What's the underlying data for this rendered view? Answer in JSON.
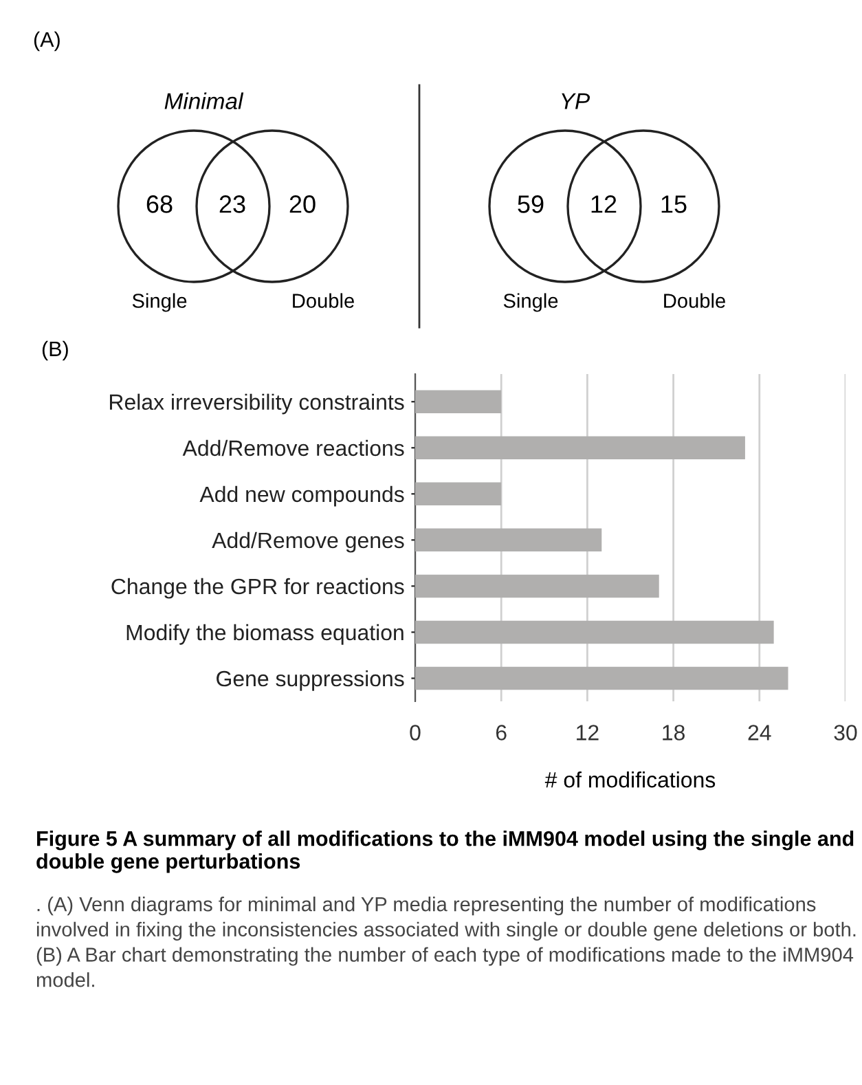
{
  "chart_data": [
    {
      "type": "other",
      "title": "Minimal",
      "categories": [
        "Single",
        null,
        "Double"
      ],
      "values": [
        68,
        23,
        20
      ],
      "data_labels": true,
      "annotations": [
        "(A)"
      ]
    },
    {
      "type": "other",
      "title": "YP",
      "categories": [
        "Single",
        null,
        "Double"
      ],
      "values": [
        59,
        12,
        15
      ],
      "data_labels": true
    },
    {
      "type": "bar",
      "orientation": "horizontal",
      "categories": [
        "Relax irreversibility constraints",
        "Add/Remove reactions",
        "Add new compounds",
        "Add/Remove genes",
        "Change the GPR for reactions",
        "Modify the biomass equation",
        "Gene suppressions"
      ],
      "values": [
        6,
        23,
        6,
        13,
        17,
        25,
        26
      ],
      "color": "#b0afae",
      "xlim": [
        0,
        30
      ],
      "xticks": [
        0,
        6,
        12,
        18,
        24,
        30
      ],
      "grid": "x",
      "xlabel": "# of modifications",
      "annotations": [
        "(B)",
        "Figure 5 A summary of all modifications to the iMM904 model using the single and double gene perturbations",
        ". (A) Venn diagrams for minimal and YP media representing the number of modifications involved in fixing the inconsistencies associated with single or double gene deletions or both. (B) A Bar chart demonstrating the number of each type of modifications made to the iMM904 model."
      ]
    }
  ]
}
